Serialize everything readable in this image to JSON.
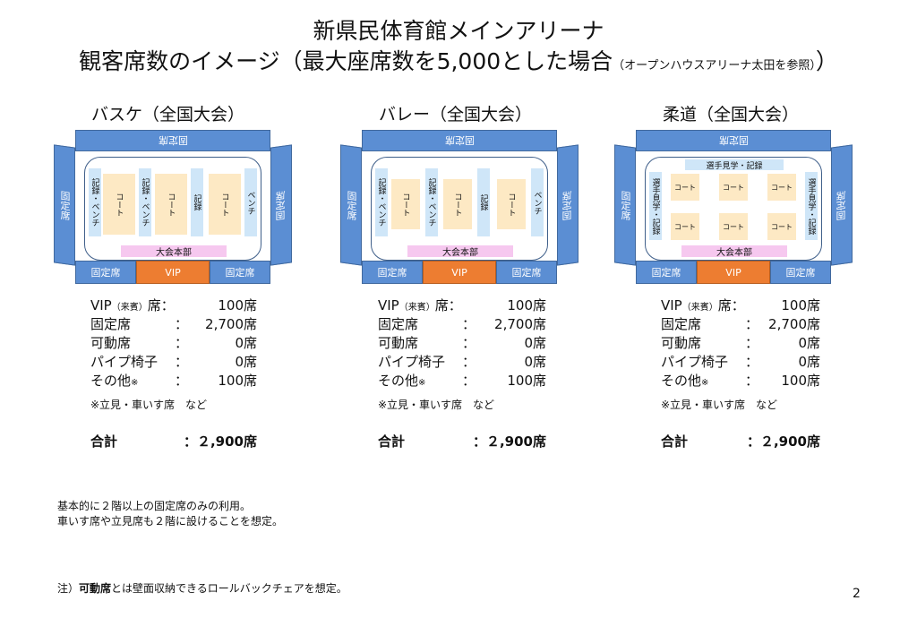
{
  "title": {
    "line1": "新県民体育館メインアリーナ",
    "line2": "観客席数のイメージ（最大座席数を5,000とした場合",
    "note": "（オープンハウスアリーナ太田を参照）",
    "close": "）"
  },
  "labels": {
    "fixed": "固定席",
    "vip": "VIP",
    "hq": "大会本部",
    "court": "コート",
    "record_bench": "記録・ベンチ",
    "record": "記録",
    "bench": "ベンチ",
    "spectate_record": "選手見学・記録"
  },
  "sections": [
    {
      "title": "バスケ（全国大会）",
      "rows": [
        {
          "label": "VIP",
          "sub": "（来賓）",
          "colon": "席：",
          "value": "100席"
        },
        {
          "label": "固定席",
          "sub": "",
          "colon": "：",
          "value": "2,700席"
        },
        {
          "label": "可動席",
          "sub": "",
          "colon": "：",
          "value": "0席"
        },
        {
          "label": "パイプ椅子",
          "sub": "",
          "colon": "：",
          "value": "0席"
        },
        {
          "label": "その他",
          "sub": "※",
          "colon": "：",
          "value": "100席"
        }
      ],
      "note": "※立見・車いす席　など",
      "total_label": "合計",
      "total_value": "：２,900席"
    },
    {
      "title": "バレー（全国大会）",
      "rows": [
        {
          "label": "VIP",
          "sub": "（来賓）",
          "colon": "席：",
          "value": "100席"
        },
        {
          "label": "固定席",
          "sub": "",
          "colon": "：",
          "value": "2,700席"
        },
        {
          "label": "可動席",
          "sub": "",
          "colon": "：",
          "value": "0席"
        },
        {
          "label": "パイプ椅子",
          "sub": "",
          "colon": "：",
          "value": "0席"
        },
        {
          "label": "その他",
          "sub": "※",
          "colon": "：",
          "value": "100席"
        }
      ],
      "note": "※立見・車いす席　など",
      "total_label": "合計",
      "total_value": "：２,900席"
    },
    {
      "title": "柔道（全国大会）",
      "rows": [
        {
          "label": "VIP",
          "sub": "（来賓）",
          "colon": "席：",
          "value": "100席"
        },
        {
          "label": "固定席",
          "sub": "",
          "colon": "：",
          "value": "2,700席"
        },
        {
          "label": "可動席",
          "sub": "",
          "colon": "：",
          "value": "0席"
        },
        {
          "label": "パイプ椅子",
          "sub": "",
          "colon": "：",
          "value": "0席"
        },
        {
          "label": "その他",
          "sub": "※",
          "colon": "：",
          "value": "100席"
        }
      ],
      "note": "※立見・車いす席　など",
      "total_label": "合計",
      "total_value": "：２,900席"
    }
  ],
  "footer": {
    "line1": "基本的に２階以上の固定席のみの利用。",
    "line2": "車いす席や立見席も２階に設けることを想定。",
    "note_prefix": "注）",
    "note_bold": "可動席",
    "note_rest": "とは壁面収納できるロールバックチェアを想定。"
  },
  "page_number": "2"
}
